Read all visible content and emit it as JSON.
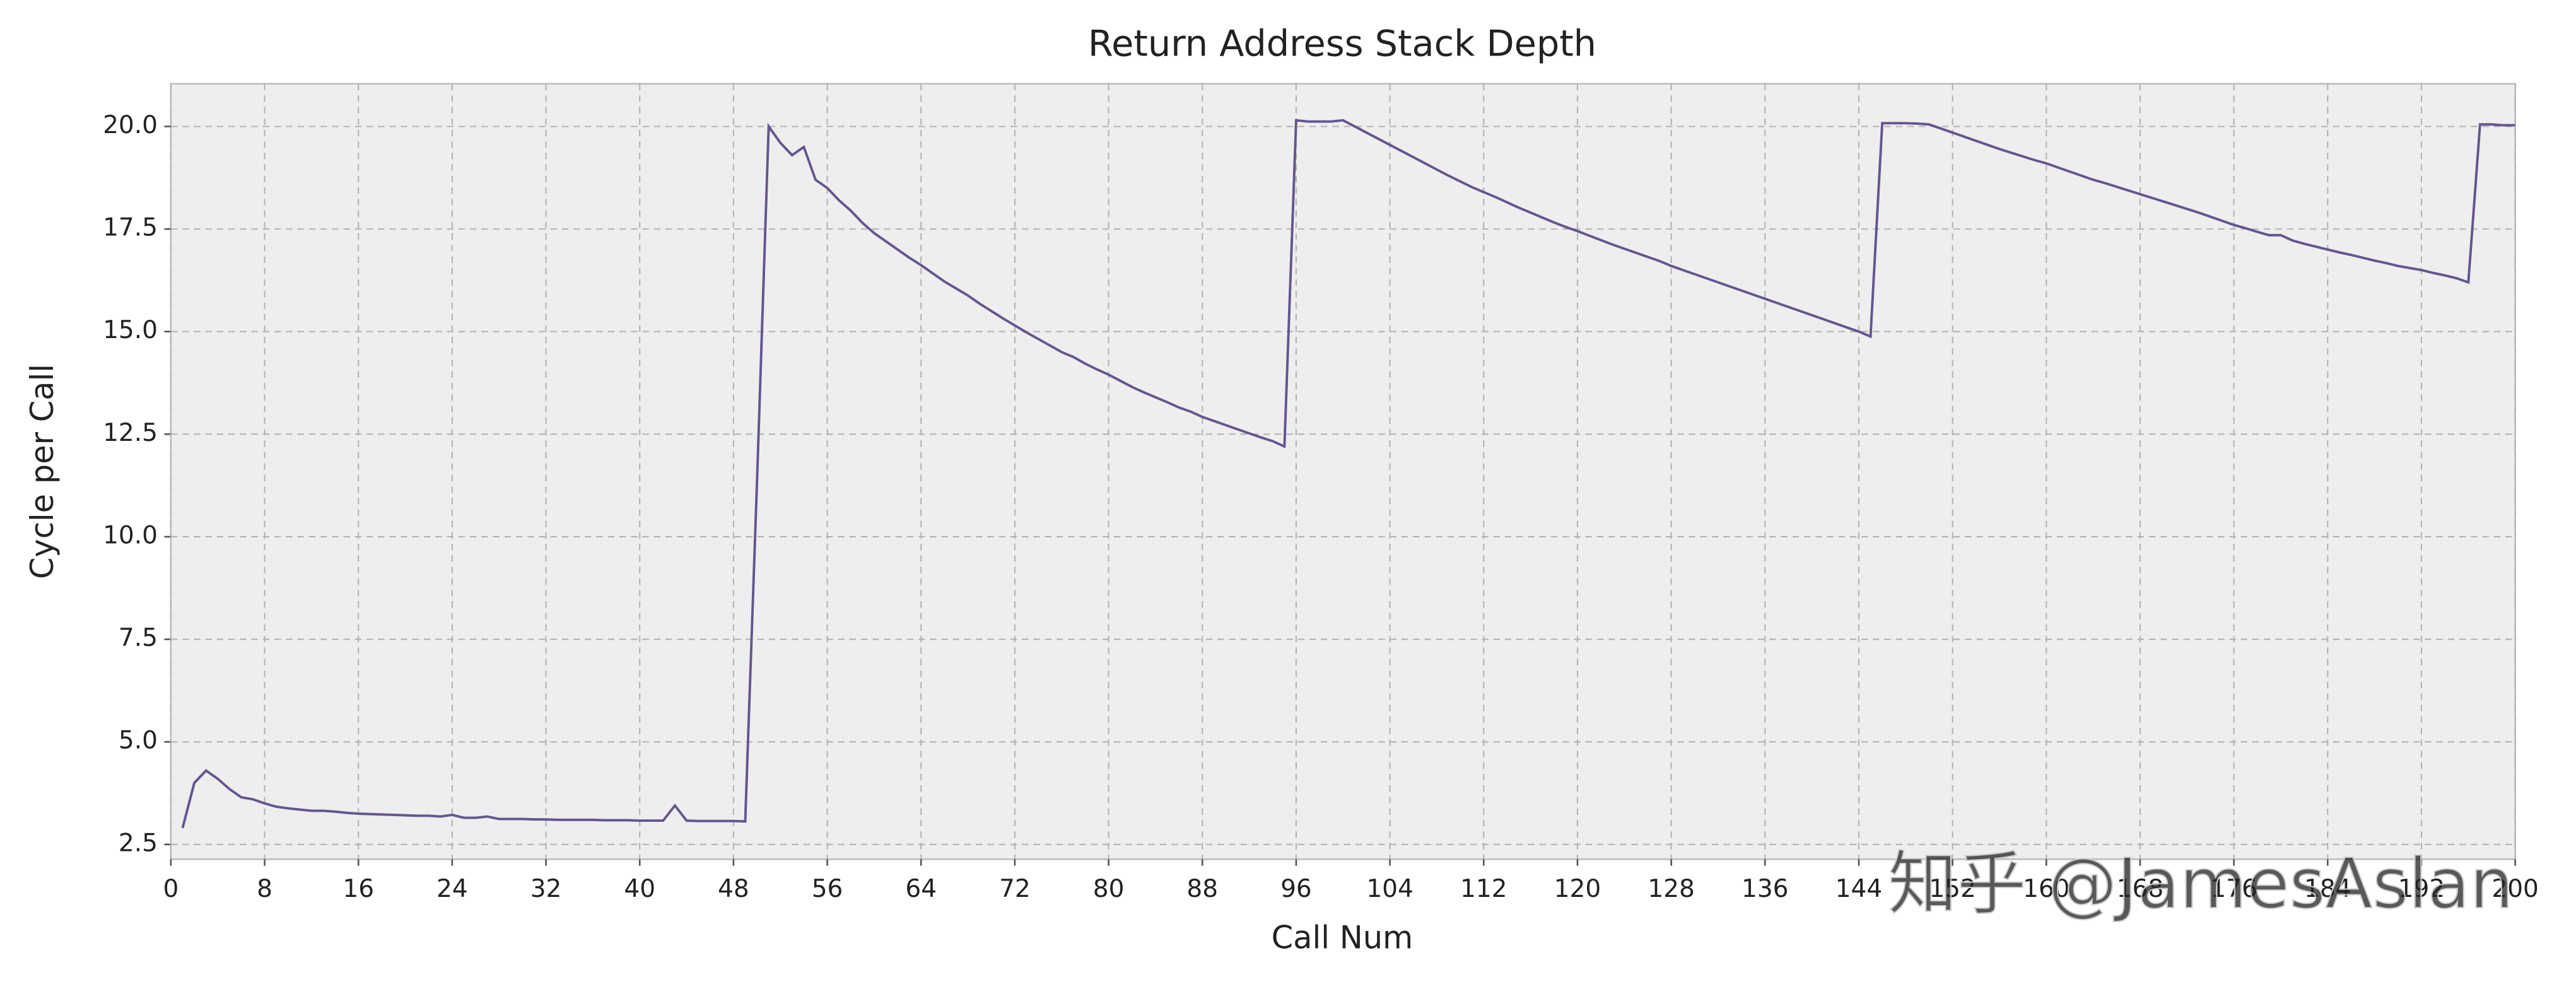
{
  "chart_data": {
    "type": "line",
    "title": "Return Address Stack Depth",
    "x_label": "Call Num",
    "y_label": "Cycle per Call",
    "annotation": "知乎 @JamesAslan",
    "x": [
      1,
      2,
      3,
      4,
      5,
      6,
      7,
      8,
      9,
      10,
      11,
      12,
      13,
      14,
      15,
      16,
      17,
      18,
      19,
      20,
      21,
      22,
      23,
      24,
      25,
      26,
      27,
      28,
      29,
      30,
      31,
      32,
      33,
      34,
      35,
      36,
      37,
      38,
      39,
      40,
      41,
      42,
      43,
      44,
      45,
      46,
      47,
      48,
      49,
      50,
      51,
      52,
      53,
      54,
      55,
      56,
      57,
      58,
      59,
      60,
      61,
      62,
      63,
      64,
      65,
      66,
      67,
      68,
      69,
      70,
      71,
      72,
      73,
      74,
      75,
      76,
      77,
      78,
      79,
      80,
      81,
      82,
      83,
      84,
      85,
      86,
      87,
      88,
      89,
      90,
      91,
      92,
      93,
      94,
      95,
      96,
      97,
      98,
      99,
      100,
      101,
      102,
      103,
      104,
      105,
      106,
      107,
      108,
      109,
      110,
      111,
      112,
      113,
      114,
      115,
      116,
      117,
      118,
      119,
      120,
      121,
      122,
      123,
      124,
      125,
      126,
      127,
      128,
      129,
      130,
      131,
      132,
      133,
      134,
      135,
      136,
      137,
      138,
      139,
      140,
      141,
      142,
      143,
      144,
      145,
      146,
      147,
      148,
      149,
      150,
      151,
      152,
      153,
      154,
      155,
      156,
      157,
      158,
      159,
      160,
      161,
      162,
      163,
      164,
      165,
      166,
      167,
      168,
      169,
      170,
      171,
      172,
      173,
      174,
      175,
      176,
      177,
      178,
      179,
      180,
      181,
      182,
      183,
      184,
      185,
      186,
      187,
      188,
      189,
      190,
      191,
      192,
      193,
      194,
      195,
      196,
      197,
      198,
      199,
      200
    ],
    "series": [
      {
        "name": "Cycle per Call",
        "color": "#65558f",
        "values": [
          2.9,
          4.0,
          4.3,
          4.1,
          3.85,
          3.65,
          3.6,
          3.5,
          3.42,
          3.38,
          3.35,
          3.32,
          3.32,
          3.3,
          3.27,
          3.25,
          3.24,
          3.23,
          3.22,
          3.21,
          3.2,
          3.2,
          3.18,
          3.22,
          3.15,
          3.15,
          3.18,
          3.12,
          3.12,
          3.12,
          3.11,
          3.11,
          3.1,
          3.1,
          3.1,
          3.1,
          3.09,
          3.09,
          3.09,
          3.08,
          3.08,
          3.08,
          3.45,
          3.08,
          3.07,
          3.07,
          3.07,
          3.07,
          3.06,
          11.3,
          20.0,
          19.6,
          19.3,
          19.5,
          18.7,
          18.5,
          18.2,
          17.95,
          17.65,
          17.4,
          17.2,
          17.0,
          16.8,
          16.62,
          16.42,
          16.22,
          16.05,
          15.88,
          15.68,
          15.5,
          15.32,
          15.15,
          14.98,
          14.82,
          14.66,
          14.5,
          14.38,
          14.22,
          14.08,
          13.95,
          13.8,
          13.65,
          13.52,
          13.4,
          13.28,
          13.15,
          13.05,
          12.92,
          12.82,
          12.72,
          12.62,
          12.52,
          12.42,
          12.33,
          12.2,
          20.15,
          20.12,
          20.12,
          20.12,
          20.15,
          20.0,
          19.85,
          19.7,
          19.55,
          19.4,
          19.25,
          19.1,
          18.95,
          18.8,
          18.66,
          18.52,
          18.4,
          18.28,
          18.15,
          18.02,
          17.9,
          17.78,
          17.66,
          17.55,
          17.45,
          17.34,
          17.23,
          17.12,
          17.02,
          16.92,
          16.82,
          16.72,
          16.6,
          16.5,
          16.4,
          16.3,
          16.2,
          16.1,
          16.0,
          15.9,
          15.8,
          15.7,
          15.6,
          15.5,
          15.4,
          15.3,
          15.2,
          15.1,
          15.0,
          14.88,
          20.08,
          20.08,
          20.08,
          20.07,
          20.05,
          19.95,
          19.85,
          19.75,
          19.65,
          19.55,
          19.45,
          19.36,
          19.27,
          19.18,
          19.1,
          19.0,
          18.9,
          18.8,
          18.7,
          18.62,
          18.53,
          18.44,
          18.35,
          18.26,
          18.17,
          18.08,
          17.99,
          17.9,
          17.8,
          17.7,
          17.6,
          17.52,
          17.43,
          17.35,
          17.35,
          17.22,
          17.14,
          17.07,
          17.0,
          16.93,
          16.87,
          16.8,
          16.73,
          16.67,
          16.6,
          16.55,
          16.5,
          16.43,
          16.37,
          16.3,
          16.2,
          20.05,
          20.05,
          20.03,
          20.03
        ]
      }
    ],
    "xlim": [
      0,
      200
    ],
    "xticks": [
      0,
      8,
      16,
      24,
      32,
      40,
      48,
      56,
      64,
      72,
      80,
      88,
      96,
      104,
      112,
      120,
      128,
      136,
      144,
      152,
      160,
      168,
      176,
      184,
      192,
      200
    ],
    "ylim": [
      2.14,
      21.04
    ],
    "yticks": [
      2.5,
      {
        "value": 5,
        "label": "5.0"
      },
      7.5,
      {
        "value": 10,
        "label": "10.0"
      },
      12.5,
      {
        "value": 15,
        "label": "15.0"
      },
      17.5,
      {
        "value": 20,
        "label": "20.0"
      }
    ],
    "grid": true
  }
}
